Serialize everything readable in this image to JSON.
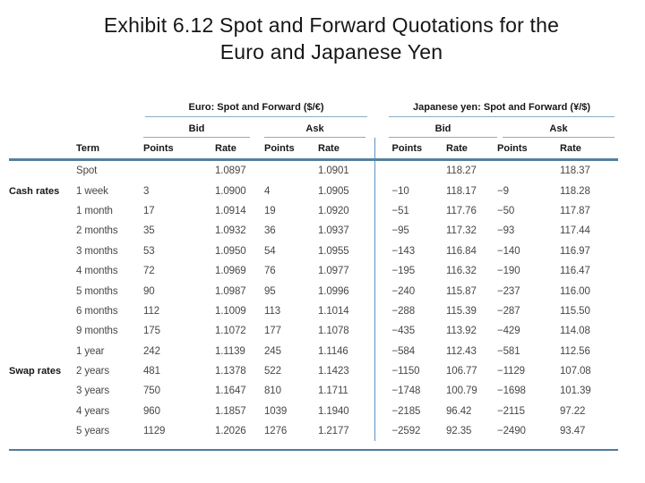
{
  "slide": {
    "title_line1": "Exhibit 6.12  Spot and Forward Quotations for the",
    "title_line2": "Euro and Japanese Yen"
  },
  "table": {
    "group_headers": {
      "euro": "Euro: Spot and Forward ($/€)",
      "yen": "Japanese yen: Spot and Forward (¥/$)"
    },
    "labels": {
      "bid": "Bid",
      "ask": "Ask",
      "term": "Term",
      "points": "Points",
      "rate": "Rate"
    },
    "row_group_labels": [
      "Cash rates",
      "Swap rates"
    ],
    "columns": [
      "group",
      "term",
      "euro_bid_points",
      "euro_bid_rate",
      "euro_ask_points",
      "euro_ask_rate",
      "yen_bid_points",
      "yen_bid_rate",
      "yen_ask_points",
      "yen_ask_rate"
    ],
    "rows": [
      [
        "",
        "Spot",
        "",
        "1.0897",
        "",
        "1.0901",
        "",
        "118.27",
        "",
        "118.37"
      ],
      [
        "Cash rates",
        "1 week",
        "3",
        "1.0900",
        "4",
        "1.0905",
        "−10",
        "118.17",
        "−9",
        "118.28"
      ],
      [
        "",
        "1 month",
        "17",
        "1.0914",
        "19",
        "1.0920",
        "−51",
        "117.76",
        "−50",
        "117.87"
      ],
      [
        "",
        "2 months",
        "35",
        "1.0932",
        "36",
        "1.0937",
        "−95",
        "117.32",
        "−93",
        "117.44"
      ],
      [
        "",
        "3 months",
        "53",
        "1.0950",
        "54",
        "1.0955",
        "−143",
        "116.84",
        "−140",
        "116.97"
      ],
      [
        "",
        "4 months",
        "72",
        "1.0969",
        "76",
        "1.0977",
        "−195",
        "116.32",
        "−190",
        "116.47"
      ],
      [
        "",
        "5 months",
        "90",
        "1.0987",
        "95",
        "1.0996",
        "−240",
        "115.87",
        "−237",
        "116.00"
      ],
      [
        "",
        "6 months",
        "112",
        "1.1009",
        "113",
        "1.1014",
        "−288",
        "115.39",
        "−287",
        "115.50"
      ],
      [
        "",
        "9 months",
        "175",
        "1.1072",
        "177",
        "1.1078",
        "−435",
        "113.92",
        "−429",
        "114.08"
      ],
      [
        "",
        "1 year",
        "242",
        "1.1139",
        "245",
        "1.1146",
        "−584",
        "112.43",
        "−581",
        "112.56"
      ],
      [
        "Swap rates",
        "2 years",
        "481",
        "1.1378",
        "522",
        "1.1423",
        "−1150",
        "106.77",
        "−1129",
        "107.08"
      ],
      [
        "",
        "3 years",
        "750",
        "1.1647",
        "810",
        "1.1711",
        "−1748",
        "100.79",
        "−1698",
        "101.39"
      ],
      [
        "",
        "4 years",
        "960",
        "1.1857",
        "1039",
        "1.1940",
        "−2185",
        "96.42",
        "−2115",
        "97.22"
      ],
      [
        "",
        "5 years",
        "1129",
        "1.2026",
        "1276",
        "1.2177",
        "−2592",
        "92.35",
        "−2490",
        "93.47"
      ]
    ],
    "colors": {
      "rule_thick": "#54819f",
      "rule_thin": "#8aadc5",
      "divider": "#5b94c4",
      "rule_bottom": "#4f7d9c"
    }
  }
}
